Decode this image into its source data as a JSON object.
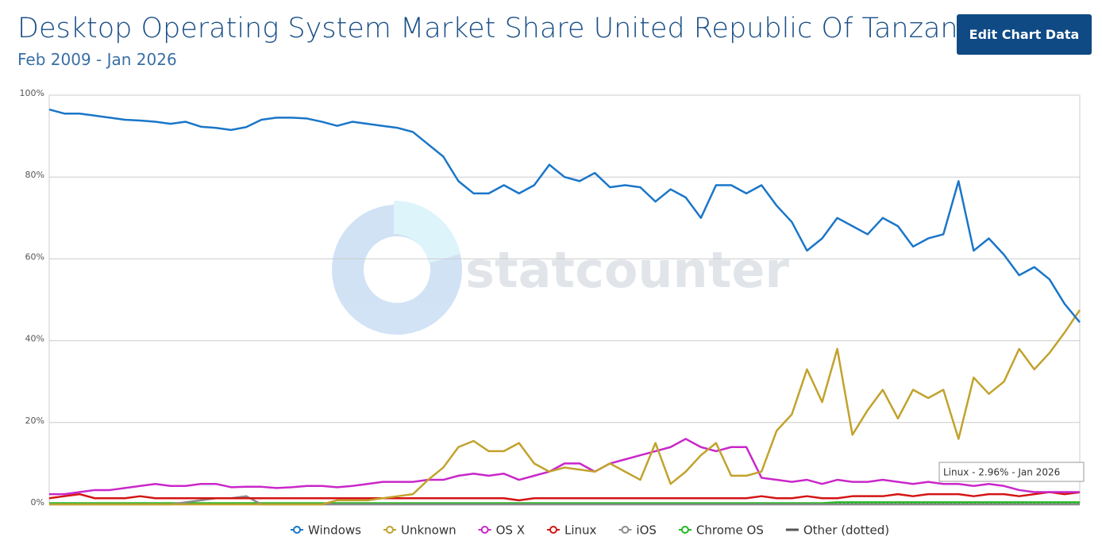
{
  "chart_data": {
    "type": "line",
    "title": "Desktop Operating System Market Share United Republic Of Tanzania",
    "subtitle": "Feb 2009 - Jan 2026",
    "button": "Edit Chart Data",
    "watermark": "statcounter",
    "tooltip": "Linux - 2.96% - Jan 2026",
    "ylim": [
      0,
      100
    ],
    "yticks": [
      {
        "value": 0,
        "label": "0%"
      },
      {
        "value": 20,
        "label": "20%"
      },
      {
        "value": 40,
        "label": "40%"
      },
      {
        "value": 60,
        "label": "60%"
      },
      {
        "value": 80,
        "label": "80%"
      },
      {
        "value": 100,
        "label": "100%"
      }
    ],
    "grid": true,
    "legend": "bottom",
    "categories": [
      null,
      null,
      null,
      null,
      null,
      null,
      null,
      null,
      null,
      null,
      null,
      null,
      null,
      null,
      null,
      null,
      null,
      null,
      null,
      null,
      null,
      null,
      null,
      null,
      null,
      null,
      null,
      null,
      null,
      null,
      null,
      null,
      null,
      null,
      null,
      null,
      null,
      null,
      null,
      null,
      null,
      null,
      null,
      null,
      null,
      null,
      null,
      null,
      null,
      null,
      null,
      null,
      null,
      null,
      null,
      null,
      null,
      null,
      null,
      null,
      null,
      null,
      null,
      null,
      null,
      null,
      null,
      null,
      null
    ],
    "series": [
      {
        "name": "Windows",
        "color": "#1a76c8",
        "values": [
          96.5,
          95.5,
          95.5,
          95,
          94.5,
          94,
          93.8,
          93.5,
          93,
          93.5,
          92.3,
          92,
          91.5,
          92.2,
          94,
          94.5,
          94.5,
          94.3,
          93.5,
          92.5,
          93.5,
          93,
          92.5,
          92,
          91,
          88,
          85,
          79,
          76,
          76,
          78,
          76,
          78,
          83,
          80,
          79,
          81,
          77.5,
          78,
          77.5,
          74,
          77,
          75,
          70,
          78,
          78,
          76,
          78,
          73,
          69,
          62,
          65,
          70,
          68,
          66,
          70,
          68,
          63,
          65,
          66,
          79,
          62,
          65,
          61,
          56,
          58,
          55,
          49,
          44.5
        ]
      },
      {
        "name": "Unknown",
        "color": "#c2a22c",
        "values": [
          0,
          0,
          0,
          0,
          0,
          0,
          0,
          0,
          0,
          0,
          0,
          0,
          0,
          0,
          0,
          0,
          0,
          0,
          0,
          1,
          1,
          1,
          1.5,
          2,
          2.5,
          6,
          9,
          14,
          15.5,
          13,
          13,
          15,
          10,
          8,
          9,
          8.5,
          8,
          10,
          8,
          6,
          15,
          5,
          8,
          12,
          15,
          7,
          7,
          8,
          18,
          22,
          33,
          25,
          38,
          17,
          23,
          28,
          21,
          28,
          26,
          28,
          16,
          31,
          27,
          30,
          38,
          33,
          37,
          42,
          47.5
        ]
      },
      {
        "name": "OS X",
        "color": "#c927c9",
        "values": [
          2.5,
          2.5,
          3,
          3.5,
          3.5,
          4,
          4.5,
          5,
          4.5,
          4.5,
          5,
          5,
          4.2,
          4.3,
          4.3,
          4,
          4.2,
          4.5,
          4.5,
          4.2,
          4.5,
          5,
          5.5,
          5.5,
          5.5,
          6,
          6,
          7,
          7.5,
          7,
          7.5,
          6,
          7,
          8,
          10,
          10,
          8,
          10,
          11,
          12,
          13,
          14,
          16,
          14,
          13,
          14,
          14,
          6.5,
          6,
          5.5,
          6,
          5,
          6,
          5.5,
          5.5,
          6,
          5.5,
          5,
          5.5,
          5,
          5,
          4.5,
          5,
          4.5,
          3.5,
          3,
          3,
          3,
          3
        ]
      },
      {
        "name": "Linux",
        "color": "#d41414",
        "values": [
          1.5,
          2,
          2.5,
          1.5,
          1.5,
          1.5,
          2,
          1.5,
          1.5,
          1.5,
          1.5,
          1.5,
          1.5,
          1.5,
          1.5,
          1.5,
          1.5,
          1.5,
          1.5,
          1.5,
          1.5,
          1.5,
          1.5,
          1.5,
          1.5,
          1.5,
          1.5,
          1.5,
          1.5,
          1.5,
          1.5,
          1,
          1.5,
          1.5,
          1.5,
          1.5,
          1.5,
          1.5,
          1.5,
          1.5,
          1.5,
          1.5,
          1.5,
          1.5,
          1.5,
          1.5,
          1.5,
          2,
          1.5,
          1.5,
          2,
          1.5,
          1.5,
          2,
          2,
          2,
          2.5,
          2,
          2.5,
          2.5,
          2.5,
          2,
          2.5,
          2.5,
          2,
          2.5,
          3,
          2.5,
          2.96
        ]
      },
      {
        "name": "iOS",
        "color": "#8a8a8a",
        "values": [
          0,
          0,
          0,
          0,
          0,
          0,
          0,
          0,
          0,
          0.5,
          1,
          1.5,
          1.5,
          2,
          0,
          0,
          0,
          0,
          0,
          0,
          0,
          0,
          0,
          0,
          0,
          0,
          0,
          0,
          0,
          0,
          0,
          0,
          0,
          0,
          0,
          0,
          0,
          0,
          0,
          0,
          0,
          0,
          0,
          0,
          0,
          0,
          0,
          0,
          0,
          0,
          0,
          0,
          0,
          0,
          0,
          0,
          0,
          0,
          0,
          0,
          0,
          0,
          0,
          0,
          0,
          0,
          0,
          0,
          0
        ]
      },
      {
        "name": "Chrome OS",
        "color": "#22b822",
        "values": [
          0.3,
          0.3,
          0.3,
          0.3,
          0.3,
          0.3,
          0.3,
          0.3,
          0.3,
          0.3,
          0.3,
          0.3,
          0.3,
          0.3,
          0.3,
          0.3,
          0.3,
          0.3,
          0.3,
          0.3,
          0.3,
          0.3,
          0.3,
          0.3,
          0.3,
          0.3,
          0.3,
          0.3,
          0.3,
          0.3,
          0.3,
          0.3,
          0.3,
          0.3,
          0.3,
          0.3,
          0.3,
          0.3,
          0.3,
          0.3,
          0.3,
          0.3,
          0.3,
          0.3,
          0.3,
          0.3,
          0.3,
          0.3,
          0.3,
          0.3,
          0.3,
          0.3,
          0.5,
          0.5,
          0.5,
          0.5,
          0.5,
          0.5,
          0.5,
          0.5,
          0.5,
          0.5,
          0.5,
          0.5,
          0.5,
          0.5,
          0.5,
          0.5,
          0.5
        ]
      },
      {
        "name": "Other (dotted)",
        "color": "#555555",
        "dotted": true,
        "values": [
          0.2,
          0.2,
          0.2,
          0.2,
          0.2,
          0.2,
          0.2,
          0.2,
          0.2,
          0.2,
          0.2,
          0.2,
          0.2,
          0.2,
          0.2,
          0.2,
          0.2,
          0.2,
          0.2,
          0.2,
          0.2,
          0.2,
          0.2,
          0.2,
          0.2,
          0.2,
          0.2,
          0.2,
          0.2,
          0.2,
          0.2,
          0.2,
          0.2,
          0.2,
          0.2,
          0.2,
          0.2,
          0.2,
          0.2,
          0.2,
          0.2,
          0.2,
          0.2,
          0.2,
          0.2,
          0.2,
          0.2,
          0.2,
          0.2,
          0.2,
          0.2,
          0.2,
          0.2,
          0.2,
          0.2,
          0.2,
          0.2,
          0.2,
          0.2,
          0.2,
          0.2,
          0.2,
          0.2,
          0.2,
          0.2,
          0.2,
          0.2,
          0.2,
          0.2
        ]
      }
    ]
  }
}
